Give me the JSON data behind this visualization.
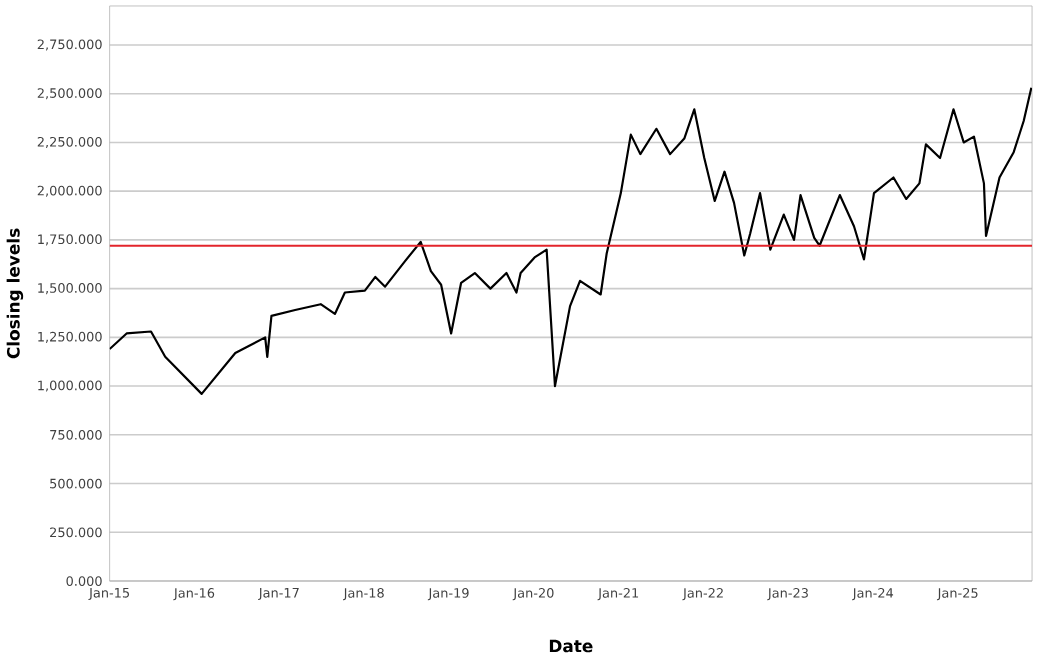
{
  "chart_data": {
    "type": "line",
    "xlabel": "Date",
    "ylabel": "Closing levels",
    "xlim": [
      "2015-01-01",
      "2025-11-15"
    ],
    "xticks": [
      {
        "value": "2015-01-01",
        "label": "Jan-15"
      },
      {
        "value": "2016-01-01",
        "label": "Jan-16"
      },
      {
        "value": "2017-01-01",
        "label": "Jan-17"
      },
      {
        "value": "2018-01-01",
        "label": "Jan-18"
      },
      {
        "value": "2019-01-01",
        "label": "Jan-19"
      },
      {
        "value": "2020-01-01",
        "label": "Jan-20"
      },
      {
        "value": "2021-01-01",
        "label": "Jan-21"
      },
      {
        "value": "2022-01-01",
        "label": "Jan-22"
      },
      {
        "value": "2023-01-01",
        "label": "Jan-23"
      },
      {
        "value": "2024-01-01",
        "label": "Jan-24"
      },
      {
        "value": "2025-01-01",
        "label": "Jan-25"
      }
    ],
    "ylim": [
      0,
      2950
    ],
    "yticks": [
      {
        "value": 0,
        "label": "0.000"
      },
      {
        "value": 250,
        "label": "250.000"
      },
      {
        "value": 500,
        "label": "500.000"
      },
      {
        "value": 750,
        "label": "750.000"
      },
      {
        "value": 1000,
        "label": "1,000.000"
      },
      {
        "value": 1250,
        "label": "1,250.000"
      },
      {
        "value": 1500,
        "label": "1,500.000"
      },
      {
        "value": 1750,
        "label": "1,750.000"
      },
      {
        "value": 2000,
        "label": "2,000.000"
      },
      {
        "value": 2250,
        "label": "2,250.000"
      },
      {
        "value": 2500,
        "label": "2,500.000"
      },
      {
        "value": 2750,
        "label": "2,750.000"
      }
    ],
    "grid": "y",
    "marker": "none",
    "line_style": "solid",
    "ref_lines": [
      {
        "axis": "y",
        "value": 1720,
        "color": "#e3242b"
      }
    ],
    "series": [
      {
        "color": "#000000",
        "x": [
          "2015-01-01",
          "2015-03-15",
          "2015-06-28",
          "2015-08-28",
          "2016-02-01",
          "2016-06-25",
          "2016-11-01",
          "2016-11-10",
          "2016-11-28",
          "2017-03-10",
          "2017-06-28",
          "2017-08-28",
          "2017-10-10",
          "2018-01-04",
          "2018-02-18",
          "2018-04-01",
          "2018-06-25",
          "2018-09-01",
          "2018-10-15",
          "2018-11-28",
          "2019-01-10",
          "2019-02-22",
          "2019-04-22",
          "2019-06-28",
          "2019-09-05",
          "2019-10-18",
          "2019-11-05",
          "2020-01-04",
          "2020-02-25",
          "2020-04-01",
          "2020-06-05",
          "2020-07-18",
          "2020-10-15",
          "2020-11-10",
          "2021-01-10",
          "2021-02-22",
          "2021-04-04",
          "2021-06-12",
          "2021-08-10",
          "2021-10-10",
          "2021-11-22",
          "2022-01-04",
          "2022-02-18",
          "2022-04-01",
          "2022-05-12",
          "2022-06-25",
          "2022-07-20",
          "2022-09-01",
          "2022-10-15",
          "2022-12-12",
          "2023-01-25",
          "2023-02-22",
          "2023-04-22",
          "2023-05-15",
          "2023-08-10",
          "2023-10-10",
          "2023-11-22",
          "2024-01-04",
          "2024-03-28",
          "2024-05-22",
          "2024-07-18",
          "2024-08-15",
          "2024-10-15",
          "2024-12-12",
          "2025-01-25",
          "2025-03-10",
          "2025-04-22",
          "2025-05-01",
          "2025-06-28",
          "2025-08-28",
          "2025-10-10",
          "2025-11-12"
        ],
        "values": [
          1190,
          1270,
          1280,
          1150,
          960,
          1170,
          1250,
          1150,
          1360,
          1390,
          1420,
          1370,
          1480,
          1490,
          1560,
          1510,
          1640,
          1740,
          1590,
          1520,
          1270,
          1530,
          1580,
          1500,
          1580,
          1480,
          1580,
          1660,
          1700,
          1000,
          1410,
          1540,
          1470,
          1680,
          1990,
          2290,
          2190,
          2320,
          2190,
          2270,
          2420,
          2170,
          1950,
          2100,
          1940,
          1670,
          1780,
          1990,
          1700,
          1880,
          1750,
          1980,
          1760,
          1720,
          1980,
          1820,
          1650,
          1990,
          2070,
          1960,
          2040,
          2240,
          2170,
          2420,
          2250,
          2280,
          2040,
          1770,
          2070,
          2200,
          2360,
          2530
        ]
      }
    ]
  }
}
